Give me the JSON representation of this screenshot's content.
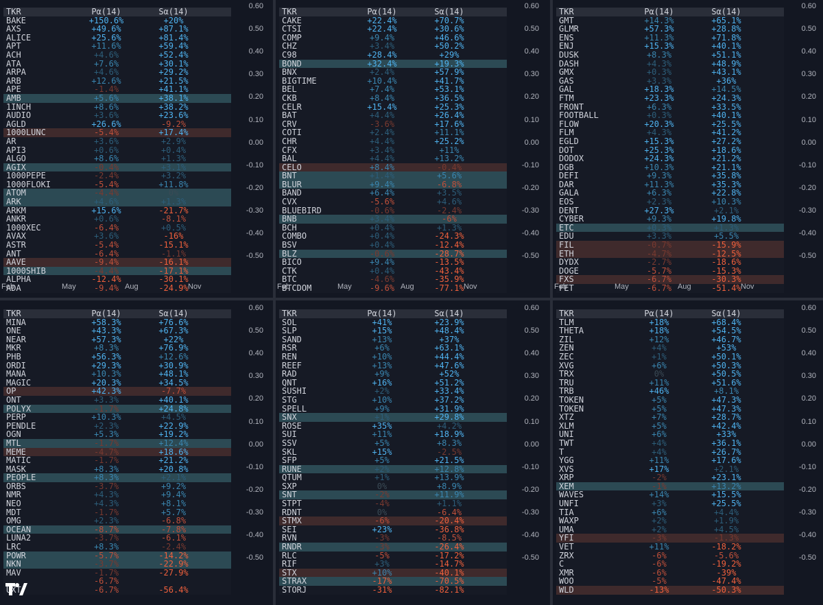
{
  "columns": {
    "tkr": "TKR",
    "p": "Pα(14)",
    "s": "Sα(14)"
  },
  "y_ticks": [
    "0.60",
    "0.50",
    "0.40",
    "0.30",
    "0.20",
    "0.10",
    "0.00",
    "-0.10",
    "-0.20",
    "-0.30",
    "-0.40",
    "-0.50"
  ],
  "x_ticks": [
    "Feb",
    "May",
    "Aug",
    "Nov"
  ],
  "colors": {
    "background": "#131722",
    "positive": "#3aa0e0",
    "negative": "#f0603c",
    "neutral": "#787b86",
    "highlight_blue": "#2c4a54",
    "highlight_red": "#3f2a2c"
  },
  "panels": [
    {
      "rows": [
        [
          "BAKE",
          "+150.6%",
          "+20%"
        ],
        [
          "AXS",
          "+49.6%",
          "+87.1%"
        ],
        [
          "ALICE",
          "+25.6%",
          "+81.4%"
        ],
        [
          "APT",
          "+11.6%",
          "+59.4%"
        ],
        [
          "ACH",
          "+4.6%",
          "+52.4%"
        ],
        [
          "ATA",
          "+7.6%",
          "+30.1%"
        ],
        [
          "ARPA",
          "+4.6%",
          "+29.2%"
        ],
        [
          "ARB",
          "+12.6%",
          "+21.5%"
        ],
        [
          "APE",
          "-1.4%",
          "+41.1%"
        ],
        [
          "AMB",
          "+5.6%",
          "+38.1%"
        ],
        [
          "1INCH",
          "+8.6%",
          "+38.2%"
        ],
        [
          "AUDIO",
          "+3.6%",
          "+23.6%"
        ],
        [
          "AGLD",
          "+26.6%",
          "-9.2%"
        ],
        [
          "1000LUNC",
          "-5.4%",
          "+17.4%"
        ],
        [
          "AR",
          "+3.6%",
          "+2.9%"
        ],
        [
          "API3",
          "+0.6%",
          "+0.4%"
        ],
        [
          "ALGO",
          "+8.6%",
          "+1.3%"
        ],
        [
          "AGIX",
          "-0.4%",
          "+3.1%"
        ],
        [
          "1000PEPE",
          "-2.4%",
          "+3.2%"
        ],
        [
          "1000FLOKI",
          "-5.4%",
          "+11.8%"
        ],
        [
          "ATOM",
          "-4.4%",
          "0%"
        ],
        [
          "ARK",
          "+4.6%",
          "+1.3%"
        ],
        [
          "ARKM",
          "+15.6%",
          "-21.7%"
        ],
        [
          "ANKR",
          "+0.6%",
          "-8.1%"
        ],
        [
          "1000XEC",
          "-6.4%",
          "+0.5%"
        ],
        [
          "AVAX",
          "+3.6%",
          "-16%"
        ],
        [
          "ASTR",
          "-5.4%",
          "-15.1%"
        ],
        [
          "ANT",
          "-6.4%",
          "-1.1%"
        ],
        [
          "AAVE",
          "-9.4%",
          "-16.1%"
        ],
        [
          "1000SHIB",
          "-4.4%",
          "-17.1%"
        ],
        [
          "ALPHA",
          "-12.4%",
          "-30.1%"
        ],
        [
          "ADA",
          "-9.4%",
          "-24.9%"
        ]
      ]
    },
    {
      "rows": [
        [
          "CAKE",
          "+22.4%",
          "+70.7%"
        ],
        [
          "CTSI",
          "+22.4%",
          "+30.6%"
        ],
        [
          "COMP",
          "+9.4%",
          "+46.6%"
        ],
        [
          "CHZ",
          "+3.4%",
          "+50.2%"
        ],
        [
          "C98",
          "+28.4%",
          "+29%"
        ],
        [
          "BOND",
          "+32.4%",
          "+19.3%"
        ],
        [
          "BNX",
          "+2.4%",
          "+57.9%"
        ],
        [
          "BIGTIME",
          "+10.4%",
          "+41.7%"
        ],
        [
          "BEL",
          "+7.4%",
          "+53.1%"
        ],
        [
          "CKB",
          "+8.4%",
          "+36.5%"
        ],
        [
          "CELR",
          "+15.4%",
          "+25.3%"
        ],
        [
          "BAT",
          "+4.4%",
          "+26.4%"
        ],
        [
          "CRV",
          "-3.6%",
          "+17.6%"
        ],
        [
          "COTI",
          "+2.4%",
          "+11.1%"
        ],
        [
          "CHR",
          "+4.4%",
          "+25.2%"
        ],
        [
          "CFX",
          "+3.4%",
          "+11%"
        ],
        [
          "BAL",
          "+4.4%",
          "+13.2%"
        ],
        [
          "CELO",
          "+8.4%",
          "-0.4%"
        ],
        [
          "BNT",
          "+1.4%",
          "+5.6%"
        ],
        [
          "BLUR",
          "+9.4%",
          "-6.8%"
        ],
        [
          "BAND",
          "+6.4%",
          "+3.5%"
        ],
        [
          "CVX",
          "-5.6%",
          "+4.6%"
        ],
        [
          "BLUEBIRD",
          "-0.6%",
          "-2.4%"
        ],
        [
          "BNB",
          "+3.4%",
          "-6%"
        ],
        [
          "BCH",
          "+0.4%",
          "+1.3%"
        ],
        [
          "COMBO",
          "+0.4%",
          "-24.3%"
        ],
        [
          "BSV",
          "+0.4%",
          "-12.4%"
        ],
        [
          "BLZ",
          "-0.6%",
          "-28.7%"
        ],
        [
          "BICO",
          "+9.4%",
          "-13.5%"
        ],
        [
          "CTK",
          "+0.4%",
          "-43.4%"
        ],
        [
          "BTC",
          "-4.6%",
          "-35.9%"
        ],
        [
          "BTCDOM",
          "-9.6%",
          "-77.1%"
        ]
      ]
    },
    {
      "rows": [
        [
          "GMT",
          "+14.3%",
          "+65.1%"
        ],
        [
          "GLMR",
          "+57.3%",
          "+28.8%"
        ],
        [
          "ENS",
          "+11.3%",
          "+71.8%"
        ],
        [
          "ENJ",
          "+15.3%",
          "+40.1%"
        ],
        [
          "DUSK",
          "+8.3%",
          "+51.1%"
        ],
        [
          "DASH",
          "+4.3%",
          "+48.9%"
        ],
        [
          "GMX",
          "+0.3%",
          "+43.1%"
        ],
        [
          "GAS",
          "+3.3%",
          "+36%"
        ],
        [
          "GAL",
          "+18.3%",
          "+14.5%"
        ],
        [
          "FTM",
          "+23.3%",
          "+24.3%"
        ],
        [
          "FRONT",
          "+6.3%",
          "+33.5%"
        ],
        [
          "FOOTBALL",
          "+0.3%",
          "+40.1%"
        ],
        [
          "FLOW",
          "+20.3%",
          "+25.5%"
        ],
        [
          "FLM",
          "+4.3%",
          "+41.2%"
        ],
        [
          "EGLD",
          "+15.3%",
          "+27.2%"
        ],
        [
          "DOT",
          "+25.3%",
          "+18.6%"
        ],
        [
          "DODOX",
          "+24.3%",
          "+21.2%"
        ],
        [
          "DGB",
          "+10.3%",
          "+21.1%"
        ],
        [
          "DEFI",
          "+9.3%",
          "+35.8%"
        ],
        [
          "DAR",
          "+11.3%",
          "+35.3%"
        ],
        [
          "GALA",
          "+6.3%",
          "+22.8%"
        ],
        [
          "EOS",
          "+2.3%",
          "+10.3%"
        ],
        [
          "DENT",
          "+27.3%",
          "+2.1%"
        ],
        [
          "CYBER",
          "+9.3%",
          "+19.8%"
        ],
        [
          "ETC",
          "+0.3%",
          "+1.3%"
        ],
        [
          "EDU",
          "+3.3%",
          "+5.5%"
        ],
        [
          "FIL",
          "-0.7%",
          "-15.9%"
        ],
        [
          "ETH",
          "-4.7%",
          "-12.5%"
        ],
        [
          "DYDX",
          "-2.7%",
          "-18.6%"
        ],
        [
          "DOGE",
          "-5.7%",
          "-15.3%"
        ],
        [
          "FXS",
          "-6.7%",
          "-30.3%"
        ],
        [
          "FET",
          "-6.7%",
          "-51.4%"
        ]
      ]
    },
    {
      "rows": [
        [
          "MINA",
          "+58.3%",
          "+76.6%"
        ],
        [
          "ONE",
          "+43.3%",
          "+67.3%"
        ],
        [
          "NEAR",
          "+57.3%",
          "+22%"
        ],
        [
          "MKR",
          "+8.3%",
          "+76.9%"
        ],
        [
          "PHB",
          "+56.3%",
          "+12.6%"
        ],
        [
          "ORDI",
          "+29.3%",
          "+30.9%"
        ],
        [
          "MANA",
          "+10.3%",
          "+48.1%"
        ],
        [
          "MAGIC",
          "+20.3%",
          "+34.5%"
        ],
        [
          "OP",
          "+42.3%",
          "-7.7%"
        ],
        [
          "ONT",
          "+3.3%",
          "+40.1%"
        ],
        [
          "POLYX",
          "-1.7%",
          "+24.8%"
        ],
        [
          "PERP",
          "+10.3%",
          "+4.5%"
        ],
        [
          "PENDLE",
          "+2.3%",
          "+22.9%"
        ],
        [
          "OGN",
          "+5.3%",
          "+19.2%"
        ],
        [
          "MTL",
          "-1.7%",
          "+12.4%"
        ],
        [
          "MEME",
          "-4.7%",
          "+18.6%"
        ],
        [
          "MATIC",
          "-1.7%",
          "+21.2%"
        ],
        [
          "MASK",
          "+8.3%",
          "+20.8%"
        ],
        [
          "PEOPLE",
          "+8.3%",
          "+2.1%"
        ],
        [
          "ORBS",
          "-3.7%",
          "+9.2%"
        ],
        [
          "NMR",
          "+4.3%",
          "+9.4%"
        ],
        [
          "NEO",
          "+4.3%",
          "+8.1%"
        ],
        [
          "MDT",
          "-1.7%",
          "+5.7%"
        ],
        [
          "OMG",
          "+2.3%",
          "-6.8%"
        ],
        [
          "OCEAN",
          "-8.7%",
          "-7.8%"
        ],
        [
          "LUNA2",
          "-3.7%",
          "-6.1%"
        ],
        [
          "LRC",
          "+8.3%",
          "-2.4%"
        ],
        [
          "POWR",
          "-5.7%",
          "-14.2%"
        ],
        [
          "NKN",
          "-3.7%",
          "-22.9%"
        ],
        [
          "MAV",
          "-1.7%",
          "-27.9%"
        ],
        [
          "",
          "-6.7%",
          ""
        ],
        [
          "UXT",
          "-6.7%",
          "-56.4%"
        ]
      ]
    },
    {
      "rows": [
        [
          "SOL",
          "+41%",
          "+23.9%"
        ],
        [
          "SLP",
          "+15%",
          "+48.4%"
        ],
        [
          "SAND",
          "+13%",
          "+37%"
        ],
        [
          "RSR",
          "+6%",
          "+63.1%"
        ],
        [
          "REN",
          "+10%",
          "+44.4%"
        ],
        [
          "REEF",
          "+13%",
          "+47.6%"
        ],
        [
          "RAD",
          "+9%",
          "+52%"
        ],
        [
          "QNT",
          "+16%",
          "+51.2%"
        ],
        [
          "SUSHI",
          "+2%",
          "+33.4%"
        ],
        [
          "STG",
          "+10%",
          "+37.2%"
        ],
        [
          "SPELL",
          "+9%",
          "+31.9%"
        ],
        [
          "SNX",
          "+1%",
          "+29.8%"
        ],
        [
          "ROSE",
          "+35%",
          "+4.2%"
        ],
        [
          "SUI",
          "+11%",
          "+18.9%"
        ],
        [
          "SSV",
          "+5%",
          "+8.3%"
        ],
        [
          "SKL",
          "+15%",
          "-2.5%"
        ],
        [
          "SFP",
          "+5%",
          "+21.5%"
        ],
        [
          "RUNE",
          "+2%",
          "+12.8%"
        ],
        [
          "QTUM",
          "+1%",
          "+13.9%"
        ],
        [
          "SXP",
          "0%",
          "+8.9%"
        ],
        [
          "SNT",
          "-2%",
          "+11.9%"
        ],
        [
          "STPT",
          "-4%",
          "+1.1%"
        ],
        [
          "RDNT",
          "0%",
          "-6.4%"
        ],
        [
          "STMX",
          "-6%",
          "-20.4%"
        ],
        [
          "SEI",
          "+23%",
          "-36.8%"
        ],
        [
          "RVN",
          "-3%",
          "-8.5%"
        ],
        [
          "RNDR",
          "-3%",
          "-26.4%"
        ],
        [
          "RLC",
          "-5%",
          "-17.2%"
        ],
        [
          "RIF",
          "+3%",
          "-14.7%"
        ],
        [
          "STX",
          "+10%",
          "-40.1%"
        ],
        [
          "STRAX",
          "-17%",
          "-70.5%"
        ],
        [
          "STORJ",
          "-31%",
          "-82.1%"
        ]
      ]
    },
    {
      "rows": [
        [
          "TLM",
          "+18%",
          "+68.4%"
        ],
        [
          "THETA",
          "+18%",
          "+54.5%"
        ],
        [
          "ZIL",
          "+12%",
          "+46.7%"
        ],
        [
          "ZEN",
          "+4%",
          "+53%"
        ],
        [
          "ZEC",
          "+1%",
          "+50.1%"
        ],
        [
          "XVG",
          "+6%",
          "+50.3%"
        ],
        [
          "TRX",
          "0%",
          "+50.5%"
        ],
        [
          "TRU",
          "+11%",
          "+51.6%"
        ],
        [
          "TRB",
          "+46%",
          "+8.1%"
        ],
        [
          "TOKEN",
          "+5%",
          "+47.3%"
        ],
        [
          "TOKEN",
          "+5%",
          "+47.3%"
        ],
        [
          "XTZ",
          "+7%",
          "+28.7%"
        ],
        [
          "XLM",
          "+5%",
          "+42.4%"
        ],
        [
          "UNI",
          "+6%",
          "+33%"
        ],
        [
          "TWT",
          "+4%",
          "+36.1%"
        ],
        [
          "T",
          "+4%",
          "+26.7%"
        ],
        [
          "YGG",
          "+11%",
          "+17.6%"
        ],
        [
          "XVS",
          "+17%",
          "+2.1%"
        ],
        [
          "XRP",
          "-2%",
          "+23.1%"
        ],
        [
          "XEM",
          "-1%",
          "+13.2%"
        ],
        [
          "WAVES",
          "+14%",
          "+15.5%"
        ],
        [
          "UNFI",
          "+3%",
          "+25.5%"
        ],
        [
          "TIA",
          "+6%",
          "+4.4%"
        ],
        [
          "WAXP",
          "+2%",
          "+1.9%"
        ],
        [
          "UMA",
          "+2%",
          "+4.5%"
        ],
        [
          "YFI",
          "-3%",
          "-1.3%"
        ],
        [
          "VET",
          "+11%",
          "-18.2%"
        ],
        [
          "ZRX",
          "-6%",
          "-5.6%"
        ],
        [
          "C",
          "-6%",
          "-19.2%"
        ],
        [
          "XMR",
          "-6%",
          "-39%"
        ],
        [
          "WOO",
          "-5%",
          "-47.4%"
        ],
        [
          "WLD",
          "-13%",
          "-50.3%"
        ]
      ]
    }
  ]
}
